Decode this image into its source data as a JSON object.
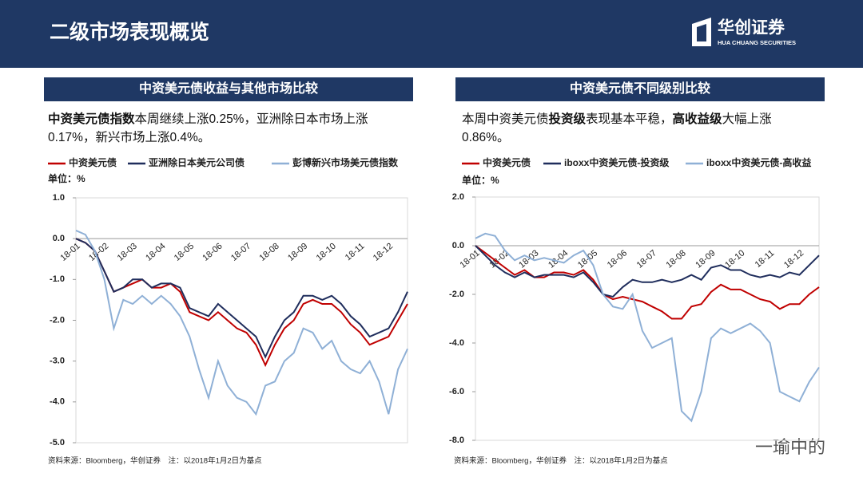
{
  "header": {
    "title": "二级市场表现概览",
    "logo_name": "华创证券",
    "logo_sub": "HUA CHUANG SECURITIES"
  },
  "panels": [
    {
      "heading": "中资美元债收益与其他市场比较",
      "description": [
        {
          "text": "中资美元债指数",
          "bold": true
        },
        {
          "text": "本周继续上涨0.25%，亚洲除日本市场上涨0.17%，新兴市场上涨0.4%。",
          "bold": false
        }
      ],
      "source": "资料来源：Bloomberg，华创证券　注：以2018年1月2日为基点"
    },
    {
      "heading": "中资美元债不同级别比较",
      "description": [
        {
          "text": "本周中资美元债",
          "bold": false
        },
        {
          "text": "投资级",
          "bold": true
        },
        {
          "text": "表现基本平稳，",
          "bold": false
        },
        {
          "text": "高收益级",
          "bold": true
        },
        {
          "text": "大幅上涨0.86%。",
          "bold": false
        }
      ],
      "source": "资料来源：Bloomberg，华创证券　注：以2018年1月2日为基点"
    }
  ],
  "watermark": "一瑜中的",
  "chart_data": [
    {
      "type": "line",
      "y_label": "单位：%",
      "categories": [
        "18-01",
        null,
        null,
        "18-02",
        null,
        null,
        "18-03",
        null,
        null,
        "18-04",
        null,
        null,
        "18-05",
        null,
        null,
        "18-06",
        null,
        null,
        "18-07",
        null,
        null,
        "18-08",
        null,
        null,
        "18-09",
        null,
        null,
        "18-10",
        null,
        null,
        "18-11",
        null,
        null,
        "18-12",
        null,
        null
      ],
      "ylim": [
        -5,
        1
      ],
      "yticks": [
        {
          "value": 1,
          "label": "1.0"
        },
        {
          "value": 0,
          "label": "0.0"
        },
        {
          "value": -1,
          "label": "-1.0"
        },
        {
          "value": -2,
          "label": "-2.0"
        },
        {
          "value": -3,
          "label": "-3.0"
        },
        {
          "value": -4,
          "label": "-4.0"
        },
        {
          "value": -5,
          "label": "-5.0"
        }
      ],
      "series": [
        {
          "name": "中资美元债",
          "color": "#c00000",
          "values": [
            0,
            -0.1,
            -0.3,
            -0.8,
            -1.3,
            -1.2,
            -1.1,
            -1.0,
            -1.2,
            -1.2,
            -1.1,
            -1.3,
            -1.8,
            -1.9,
            -2.0,
            -1.8,
            -2.0,
            -2.2,
            -2.3,
            -2.6,
            -3.1,
            -2.6,
            -2.2,
            -2.0,
            -1.6,
            -1.5,
            -1.6,
            -1.6,
            -1.8,
            -2.1,
            -2.3,
            -2.6,
            -2.5,
            -2.4,
            -2.0,
            -1.6
          ]
        },
        {
          "name": "亚洲除日本美元公司债",
          "color": "#1f2d5c",
          "values": [
            0,
            -0.1,
            -0.3,
            -0.8,
            -1.3,
            -1.2,
            -1.0,
            -1.0,
            -1.2,
            -1.1,
            -1.1,
            -1.2,
            -1.7,
            -1.8,
            -1.9,
            -1.6,
            -1.8,
            -2.0,
            -2.2,
            -2.4,
            -2.9,
            -2.4,
            -2.0,
            -1.8,
            -1.4,
            -1.4,
            -1.5,
            -1.4,
            -1.6,
            -1.9,
            -2.1,
            -2.4,
            -2.3,
            -2.2,
            -1.8,
            -1.3
          ]
        },
        {
          "name": "彭博新兴市场美元债指数",
          "color": "#8fb0d6",
          "values": [
            0.2,
            0.1,
            -0.3,
            -1.0,
            -2.2,
            -1.5,
            -1.6,
            -1.4,
            -1.6,
            -1.4,
            -1.6,
            -1.9,
            -2.4,
            -3.2,
            -3.9,
            -3.0,
            -3.6,
            -3.9,
            -4.0,
            -4.3,
            -3.6,
            -3.5,
            -3.0,
            -2.8,
            -2.2,
            -2.3,
            -2.7,
            -2.5,
            -3.0,
            -3.2,
            -3.3,
            -3.0,
            -3.5,
            -4.3,
            -3.2,
            -2.7
          ]
        }
      ]
    },
    {
      "type": "line",
      "y_label": "单位：%",
      "categories": [
        "18-01",
        null,
        null,
        "18-02",
        null,
        null,
        "18-03",
        null,
        null,
        "18-04",
        null,
        null,
        "18-05",
        null,
        null,
        "18-06",
        null,
        null,
        "18-07",
        null,
        null,
        "18-08",
        null,
        null,
        "18-09",
        null,
        null,
        "18-10",
        null,
        null,
        "18-11",
        null,
        null,
        "18-12",
        null,
        null
      ],
      "ylim": [
        -8,
        2
      ],
      "yticks": [
        {
          "value": 2,
          "label": "2.0"
        },
        {
          "value": 0,
          "label": "0.0"
        },
        {
          "value": -2,
          "label": "-2.0"
        },
        {
          "value": -4,
          "label": "-4.0"
        },
        {
          "value": -6,
          "label": "-6.0"
        },
        {
          "value": -8,
          "label": "-8.0"
        }
      ],
      "series": [
        {
          "name": "中资美元债",
          "color": "#c00000",
          "values": [
            0,
            -0.3,
            -0.6,
            -0.9,
            -1.2,
            -1.0,
            -1.3,
            -1.3,
            -1.1,
            -1.1,
            -1.2,
            -1.0,
            -1.4,
            -2.0,
            -2.2,
            -2.1,
            -2.2,
            -2.3,
            -2.5,
            -2.7,
            -3.0,
            -3.0,
            -2.5,
            -2.4,
            -1.9,
            -1.6,
            -1.8,
            -1.8,
            -2.0,
            -2.2,
            -2.3,
            -2.6,
            -2.4,
            -2.4,
            -2.0,
            -1.7
          ]
        },
        {
          "name": "iboxx中资美元债-投资级",
          "color": "#1f2d5c",
          "values": [
            0,
            -0.4,
            -0.8,
            -1.1,
            -1.3,
            -1.1,
            -1.3,
            -1.2,
            -1.2,
            -1.2,
            -1.3,
            -1.1,
            -1.5,
            -2.0,
            -2.1,
            -1.7,
            -1.4,
            -1.5,
            -1.5,
            -1.4,
            -1.5,
            -1.4,
            -1.2,
            -1.4,
            -0.9,
            -0.8,
            -1.0,
            -1.0,
            -1.2,
            -1.3,
            -1.2,
            -1.3,
            -1.1,
            -1.2,
            -0.8,
            -0.4
          ]
        },
        {
          "name": "iboxx中资美元债-高收益",
          "color": "#8fb0d6",
          "values": [
            0.3,
            0.5,
            0.4,
            -0.2,
            -0.6,
            -0.4,
            -0.6,
            -0.5,
            -0.6,
            -0.7,
            -0.4,
            -0.2,
            -0.8,
            -2.0,
            -2.5,
            -2.6,
            -2.0,
            -3.5,
            -4.2,
            -4.0,
            -3.8,
            -6.8,
            -7.2,
            -6.0,
            -3.8,
            -3.4,
            -3.6,
            -3.4,
            -3.2,
            -3.5,
            -4.0,
            -6.0,
            -6.2,
            -6.4,
            -5.6,
            -5.0
          ]
        }
      ]
    }
  ]
}
